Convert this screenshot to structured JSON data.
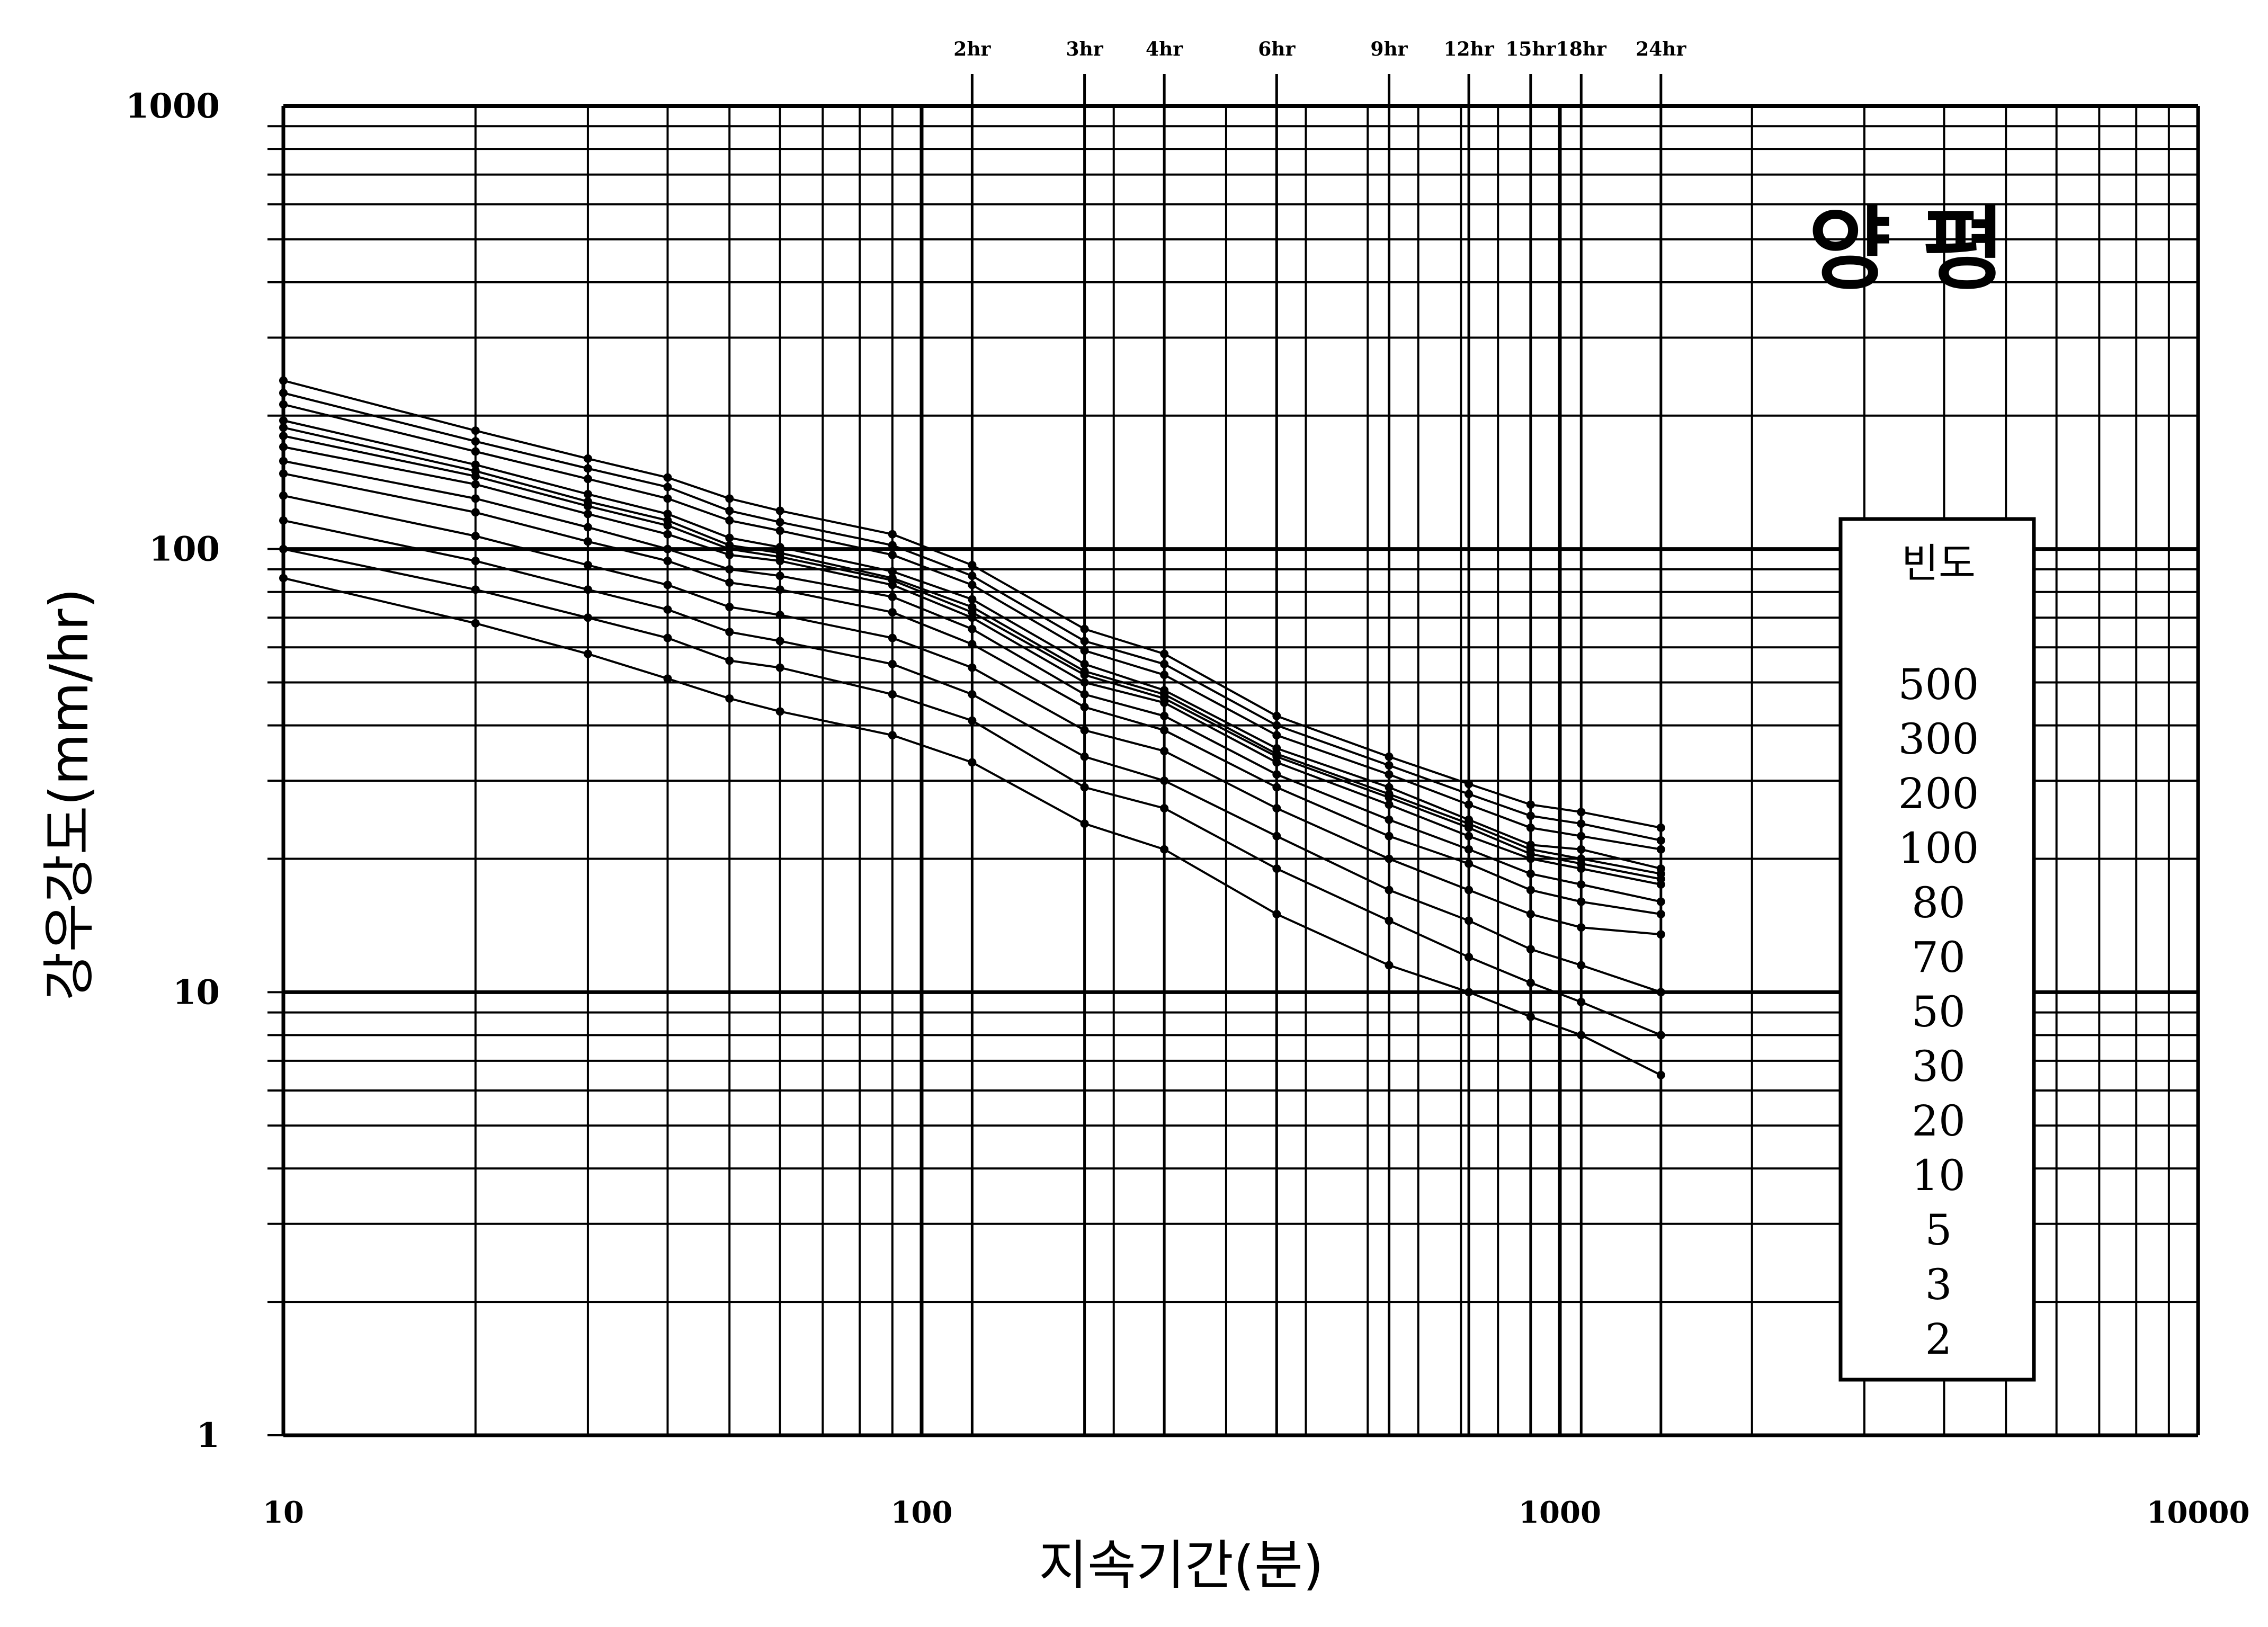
{
  "chart_data": {
    "type": "line",
    "title": "양    평",
    "xlabel": "지속기간(분)",
    "ylabel": "강우강도(mm/hr)",
    "x_scale": "log",
    "y_scale": "log",
    "xlim": [
      10,
      10000
    ],
    "ylim": [
      1,
      1000
    ],
    "grid": true,
    "x_ticks": [
      "10",
      "100",
      "1000",
      "10000"
    ],
    "y_ticks": [
      "1",
      "10",
      "100",
      "1000"
    ],
    "duration_ticks": [
      {
        "label": "2hr",
        "minutes": 120
      },
      {
        "label": "3hr",
        "minutes": 180
      },
      {
        "label": "4hr",
        "minutes": 240
      },
      {
        "label": "6hr",
        "minutes": 360
      },
      {
        "label": "9hr",
        "minutes": 540
      },
      {
        "label": "12hr",
        "minutes": 720
      },
      {
        "label": "15hr",
        "minutes": 900
      },
      {
        "label": "18hr",
        "minutes": 1080
      },
      {
        "label": "24hr",
        "minutes": 1440
      }
    ],
    "x": [
      10,
      20,
      30,
      40,
      50,
      60,
      90,
      120,
      180,
      240,
      360,
      540,
      720,
      900,
      1080,
      1440
    ],
    "legend_title": "빈도",
    "legend_position": "right",
    "series": [
      {
        "name": "500",
        "values": [
          240,
          185,
          160,
          145,
          130,
          122,
          108,
          92,
          66,
          58,
          42,
          34,
          29.5,
          26.5,
          25.5,
          23.5
        ]
      },
      {
        "name": "300",
        "values": [
          225,
          175,
          152,
          138,
          122,
          115,
          102,
          87,
          62,
          55,
          40,
          32.5,
          28,
          25,
          24,
          22
        ]
      },
      {
        "name": "200",
        "values": [
          212,
          166,
          144,
          130,
          116,
          110,
          97,
          83,
          59,
          52,
          38,
          31,
          26.5,
          23.5,
          22.5,
          21
        ]
      },
      {
        "name": "100",
        "values": [
          195,
          155,
          133,
          120,
          106,
          101,
          89,
          77,
          55,
          48,
          35.5,
          29,
          24.5,
          21.5,
          21,
          19
        ]
      },
      {
        "name": "80",
        "values": [
          188,
          150,
          128,
          116,
          102,
          98,
          86,
          74,
          53,
          47,
          34.5,
          28,
          24,
          21,
          20,
          18.5
        ]
      },
      {
        "name": "70",
        "values": [
          180,
          146,
          125,
          113,
          100,
          96,
          85,
          72,
          52,
          46,
          34,
          27.5,
          23.5,
          20.5,
          19.5,
          18
        ]
      },
      {
        "name": "50",
        "values": [
          170,
          140,
          120,
          108,
          97,
          94,
          83,
          70,
          50,
          45,
          33,
          26.5,
          22.5,
          20,
          19,
          17.5
        ]
      },
      {
        "name": "30",
        "values": [
          158,
          130,
          112,
          100,
          90,
          87,
          78,
          66,
          47,
          42,
          31,
          24.5,
          21,
          18.5,
          17.5,
          16
        ]
      },
      {
        "name": "20",
        "values": [
          148,
          121,
          104,
          94,
          84,
          81,
          72,
          61,
          44,
          39,
          29,
          22.5,
          19.5,
          17,
          16,
          15
        ]
      },
      {
        "name": "10",
        "values": [
          132,
          107,
          92,
          83,
          74,
          71,
          63,
          54,
          39,
          35,
          26,
          20,
          17,
          15,
          14,
          13.5
        ]
      },
      {
        "name": "5",
        "values": [
          116,
          94,
          81,
          73,
          65,
          62,
          55,
          47,
          34,
          30,
          22.5,
          17,
          14.5,
          12.5,
          11.5,
          10
        ]
      },
      {
        "name": "3",
        "values": [
          100,
          81,
          70,
          63,
          56,
          54,
          47,
          41,
          29,
          26,
          19,
          14.5,
          12,
          10.5,
          9.5,
          8
        ]
      },
      {
        "name": "2",
        "values": [
          86,
          68,
          58,
          51,
          46,
          43,
          38,
          33,
          24,
          21,
          15,
          11.5,
          10,
          8.8,
          8,
          6.5
        ]
      }
    ]
  }
}
